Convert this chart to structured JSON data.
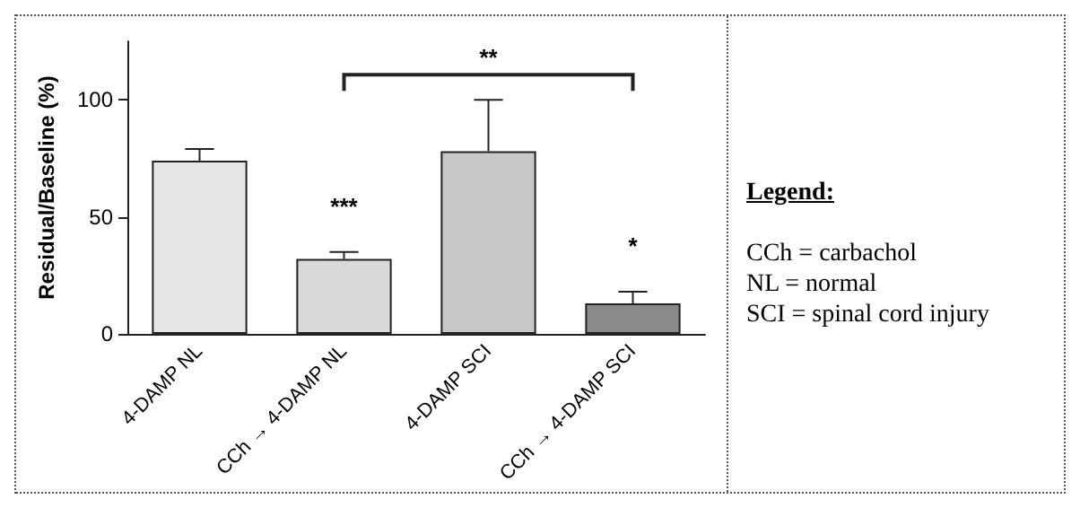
{
  "chart_data": {
    "type": "bar",
    "ylabel": "Residual/Baseline (%)",
    "categories": [
      "4-DAMP NL",
      "CCh → 4-DAMP NL",
      "4-DAMP SCI",
      "CCh → 4-DAMP SCI"
    ],
    "values": [
      74,
      32,
      78,
      13
    ],
    "errors": [
      5,
      3,
      22,
      5
    ],
    "colors": [
      "#e6e6e6",
      "#d9d9d9",
      "#c8c8c8",
      "#8a8a8a"
    ],
    "ylim": [
      0,
      125
    ],
    "yticks": [
      0,
      50,
      100
    ],
    "grid": false,
    "annotations": [
      "***",
      "**",
      "*",
      "Legend:",
      "CCh = carbachol",
      "NL = normal",
      "SCI = spinal cord injury"
    ]
  }
}
